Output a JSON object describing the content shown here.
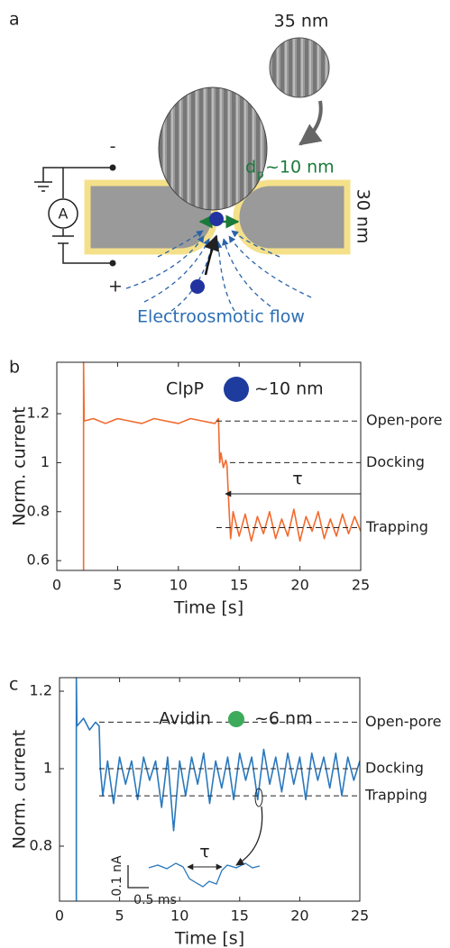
{
  "diagram": {
    "panel_label": "a",
    "particle_size": "35 nm",
    "minus": "-",
    "plus": "+",
    "ammeter": "A",
    "pore_symbol": "d",
    "pore_subscript": "p",
    "pore_size": "~10 nm",
    "membrane_thickness": "30 nm",
    "flow": "Electroosmotic flow"
  },
  "chart_data": [
    {
      "type": "line",
      "panel_label": "b",
      "xlabel": "Time [s]",
      "ylabel": "Norm. current",
      "xlim": [
        0,
        25
      ],
      "ylim": [
        0.56,
        1.41
      ],
      "xticks": [
        0,
        5,
        10,
        15,
        20,
        25
      ],
      "yticks": [
        0.6,
        0.8,
        1,
        1.2
      ],
      "protein": "ClpP",
      "protein_size": "~10 nm",
      "tau": "τ",
      "levels": [
        {
          "label": "Open-pore",
          "value": 1.17
        },
        {
          "label": "Docking",
          "value": 1
        },
        {
          "label": "Trapping",
          "value": 0.735
        }
      ],
      "series": [
        {
          "color": "#f26a2e",
          "x": [
            2.2,
            2.2,
            2.25,
            3,
            4,
            5,
            6,
            7,
            8,
            9,
            10,
            11,
            12,
            13,
            13.3,
            13.4,
            13.5,
            13.7,
            13.9,
            14.0,
            14.1,
            14.2,
            14.3,
            14.5,
            15,
            15.5,
            16,
            16.5,
            17,
            17.5,
            18,
            18.5,
            19,
            19.5,
            20,
            20.5,
            21,
            21.5,
            22,
            22.5,
            23,
            23.5,
            24,
            24.5,
            25
          ],
          "values": [
            0.56,
            1.41,
            1.17,
            1.18,
            1.16,
            1.18,
            1.17,
            1.16,
            1.18,
            1.17,
            1.16,
            1.18,
            1.17,
            1.16,
            1.18,
            1.0,
            1.04,
            0.98,
            1.01,
            0.99,
            0.88,
            0.78,
            0.69,
            0.8,
            0.7,
            0.79,
            0.68,
            0.78,
            0.71,
            0.8,
            0.69,
            0.77,
            0.7,
            0.81,
            0.68,
            0.78,
            0.72,
            0.8,
            0.69,
            0.77,
            0.7,
            0.79,
            0.71,
            0.78,
            0.72
          ]
        }
      ]
    },
    {
      "type": "line",
      "panel_label": "c",
      "xlabel": "Time [s]",
      "ylabel": "Norm. current",
      "xlim": [
        0,
        25
      ],
      "ylim": [
        0.658,
        1.235
      ],
      "xticks": [
        0,
        5,
        10,
        15,
        20,
        25
      ],
      "yticks": [
        0.8,
        1,
        1.2
      ],
      "protein": "Avidin",
      "protein_size": "~6 nm",
      "tau": "τ",
      "scale_current": "0.1 nA",
      "scale_time": "0.5 ms",
      "levels": [
        {
          "label": "Open-pore",
          "value": 1.12
        },
        {
          "label": "Docking",
          "value": 1
        },
        {
          "label": "Trapping",
          "value": 0.93
        }
      ],
      "series": [
        {
          "color": "#2a78bd",
          "x": [
            1.4,
            1.4,
            1.45,
            2,
            2.5,
            3,
            3.3,
            3.4,
            3.6,
            4,
            4.5,
            5,
            5.5,
            6,
            6.5,
            7,
            7.5,
            8,
            8.5,
            9,
            9.5,
            10,
            10.5,
            11,
            11.5,
            12,
            12.5,
            13,
            13.5,
            14,
            14.5,
            15,
            15.5,
            16,
            16.5,
            17,
            17.5,
            18,
            18.5,
            19,
            19.5,
            20,
            20.5,
            21,
            21.5,
            22,
            22.5,
            23,
            23.5,
            24,
            24.5,
            25
          ],
          "values": [
            0.658,
            1.235,
            1.11,
            1.13,
            1.1,
            1.12,
            1.11,
            1.0,
            0.93,
            1.02,
            0.91,
            1.03,
            0.96,
            1.02,
            0.92,
            1.03,
            0.97,
            1.02,
            0.9,
            1.03,
            0.84,
            1.02,
            0.93,
            1.03,
            0.96,
            1.04,
            0.91,
            1.02,
            0.95,
            1.03,
            0.92,
            1.04,
            0.97,
            1.03,
            0.92,
            1.05,
            0.96,
            1.03,
            0.94,
            1.04,
            0.96,
            1.03,
            0.92,
            1.04,
            0.97,
            1.03,
            0.95,
            1.04,
            0.93,
            1.03,
            0.97,
            1.02
          ]
        }
      ]
    }
  ]
}
